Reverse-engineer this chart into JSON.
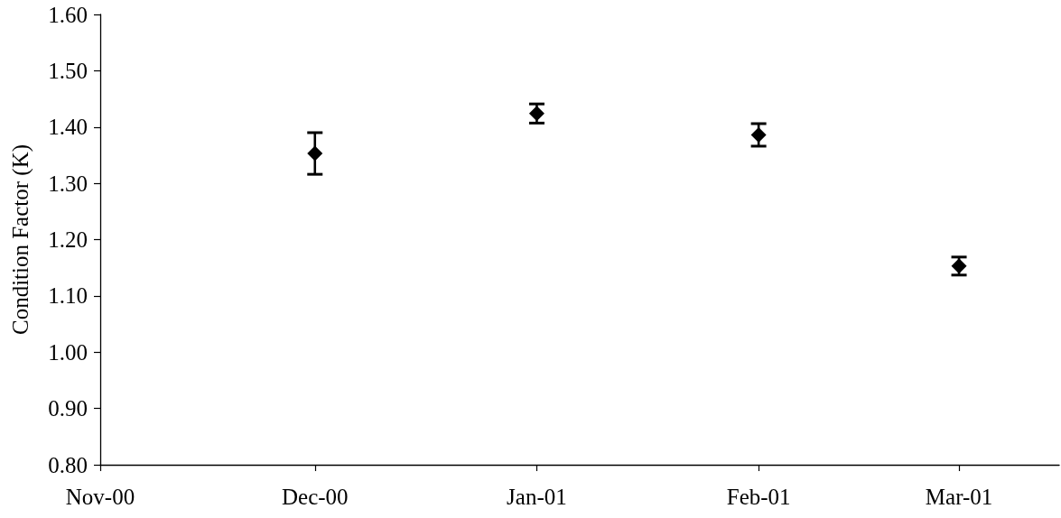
{
  "chart_data": {
    "type": "scatter",
    "ylabel": "Condition Factor (K)",
    "x": [
      "2000-12-01",
      "2001-01-01",
      "2001-02-01",
      "2001-03-01"
    ],
    "values": [
      1.353,
      1.424,
      1.386,
      1.153
    ],
    "errors": [
      0.037,
      0.017,
      0.02,
      0.016
    ],
    "color": "#000000",
    "marker": "diamond",
    "xlim": [
      "2000-11-01",
      "2001-03-15"
    ],
    "xticks": [
      {
        "value": "2000-11-01",
        "label": "Nov-00"
      },
      {
        "value": "2000-12-01",
        "label": "Dec-00"
      },
      {
        "value": "2001-01-01",
        "label": "Jan-01"
      },
      {
        "value": "2001-02-01",
        "label": "Feb-01"
      },
      {
        "value": "2001-03-01",
        "label": "Mar-01"
      }
    ],
    "ylim": [
      0.8,
      1.6
    ],
    "yticks": [
      {
        "value": 0.8,
        "label": "0.80"
      },
      {
        "value": 0.9,
        "label": "0.90"
      },
      {
        "value": 1.0,
        "label": "1.00"
      },
      {
        "value": 1.1,
        "label": "1.10"
      },
      {
        "value": 1.2,
        "label": "1.20"
      },
      {
        "value": 1.3,
        "label": "1.30"
      },
      {
        "value": 1.4,
        "label": "1.40"
      },
      {
        "value": 1.5,
        "label": "1.50"
      },
      {
        "value": 1.6,
        "label": "1.60"
      }
    ],
    "grid": false
  }
}
